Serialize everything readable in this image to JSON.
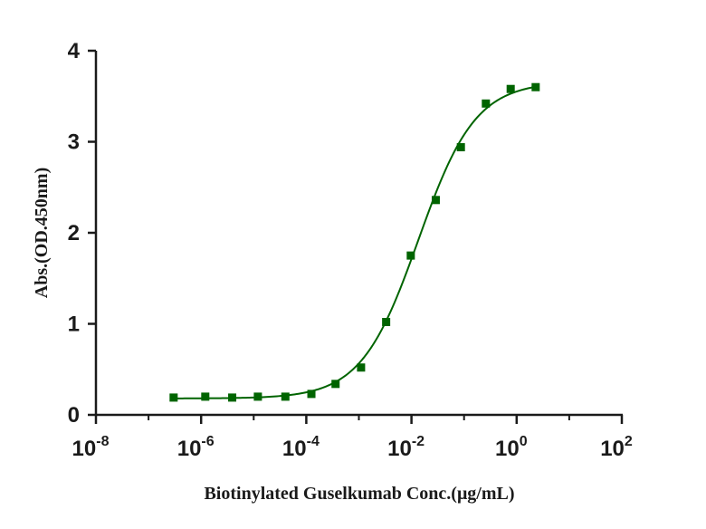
{
  "chart_data": {
    "type": "scatter",
    "title": "",
    "xlabel": "Biotinylated Guselkumab Conc.(μg/mL)",
    "ylabel": "Abs.(OD.450nm)",
    "x_scale": "log10",
    "xlim": [
      1e-08,
      100
    ],
    "ylim": [
      0,
      4
    ],
    "x_ticks": [
      {
        "base": "10",
        "exp": "-8"
      },
      {
        "base": "10",
        "exp": "-6"
      },
      {
        "base": "10",
        "exp": "-4"
      },
      {
        "base": "10",
        "exp": "-2"
      },
      {
        "base": "10",
        "exp": "0"
      },
      {
        "base": "10",
        "exp": "2"
      }
    ],
    "y_ticks": [
      "0",
      "1",
      "2",
      "3",
      "4"
    ],
    "grid": false,
    "legend": "none",
    "marker_color": "#006400",
    "line_color": "#006400",
    "series": [
      {
        "x": [
          3e-07,
          1.2e-06,
          3.9e-06,
          1.2e-05,
          4e-05,
          0.000125,
          0.00036,
          0.0011,
          0.0033,
          0.0097,
          0.029,
          0.087,
          0.26,
          0.77,
          2.3
        ],
        "y": [
          0.19,
          0.2,
          0.19,
          0.2,
          0.2,
          0.23,
          0.34,
          0.52,
          1.02,
          1.75,
          2.36,
          2.94,
          3.42,
          3.58,
          3.6
        ]
      }
    ],
    "fit": {
      "type": "4PL",
      "bottom": 0.18,
      "top": 3.66,
      "ec50": 0.0135,
      "hill": 0.8
    }
  }
}
